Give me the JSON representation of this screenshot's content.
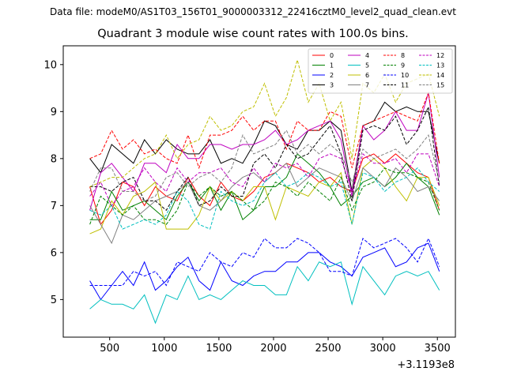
{
  "header": {
    "suptitle": "Data file: modeM0/AS1T03_156T01_9000003312_22416cztM0_level2_quad_clean.evt"
  },
  "chart_data": {
    "type": "line",
    "title": "Quadrant 3 module wise count rates with 100.0s bins.",
    "xlabel": "",
    "ylabel": "",
    "x_offset_label": "+3.1193e8",
    "xlim": [
      75,
      3665
    ],
    "ylim": [
      4.2,
      10.4
    ],
    "xticks": [
      500,
      1000,
      1500,
      2000,
      2500,
      3000,
      3500
    ],
    "yticks": [
      5,
      6,
      7,
      8,
      9,
      10
    ],
    "grid": false,
    "legend_position": "top-right",
    "x": [
      318,
      418,
      518,
      618,
      718,
      818,
      918,
      1018,
      1118,
      1218,
      1318,
      1418,
      1518,
      1618,
      1718,
      1818,
      1918,
      2018,
      2118,
      2218,
      2318,
      2418,
      2518,
      2618,
      2718,
      2818,
      2918,
      3018,
      3118,
      3218,
      3318,
      3418,
      3518
    ],
    "series": [
      {
        "name": "0",
        "color": "#ff0000",
        "dash": false,
        "values": [
          7.4,
          6.6,
          6.9,
          7.5,
          7.4,
          7.0,
          7.4,
          7.2,
          7.1,
          7.6,
          7.2,
          7.0,
          7.5,
          7.2,
          7.1,
          7.3,
          7.6,
          7.7,
          7.9,
          7.8,
          7.7,
          7.5,
          7.6,
          7.4,
          7.3,
          8.0,
          8.1,
          7.9,
          8.1,
          7.9,
          7.7,
          7.6,
          6.9
        ]
      },
      {
        "name": "1",
        "color": "#008000",
        "dash": false,
        "values": [
          6.7,
          6.7,
          7.3,
          6.9,
          7.0,
          7.1,
          6.9,
          6.7,
          7.2,
          7.5,
          7.1,
          7.4,
          6.9,
          7.3,
          6.7,
          6.9,
          7.4,
          7.4,
          7.6,
          8.1,
          7.9,
          7.7,
          7.4,
          7.0,
          7.2,
          7.5,
          7.6,
          7.4,
          7.6,
          7.9,
          7.6,
          7.4,
          6.8
        ]
      },
      {
        "name": "2",
        "color": "#0000ff",
        "dash": false,
        "values": [
          5.4,
          5.0,
          5.3,
          5.6,
          5.3,
          5.8,
          5.2,
          5.4,
          5.7,
          5.9,
          5.4,
          5.2,
          5.8,
          5.4,
          5.3,
          5.5,
          5.6,
          5.6,
          5.8,
          5.8,
          6.0,
          6.0,
          5.8,
          5.7,
          5.5,
          5.9,
          6.0,
          6.1,
          5.7,
          5.8,
          6.1,
          6.2,
          5.6
        ]
      },
      {
        "name": "3",
        "color": "#000000",
        "dash": false,
        "values": [
          8.0,
          7.7,
          8.3,
          8.1,
          7.9,
          8.4,
          8.1,
          8.4,
          8.2,
          8.1,
          8.1,
          8.4,
          7.9,
          8.0,
          7.9,
          8.3,
          8.8,
          8.7,
          8.3,
          8.2,
          8.6,
          8.6,
          8.8,
          8.6,
          7.3,
          8.7,
          8.8,
          9.2,
          9.0,
          9.1,
          9.0,
          9.0,
          7.9
        ]
      },
      {
        "name": "4",
        "color": "#bf00bf",
        "dash": false,
        "values": [
          6.9,
          7.7,
          7.9,
          7.6,
          7.3,
          7.9,
          7.9,
          7.7,
          8.3,
          8.0,
          8.0,
          8.3,
          8.3,
          8.2,
          8.3,
          8.3,
          8.4,
          8.6,
          8.3,
          8.4,
          8.6,
          8.7,
          8.8,
          8.4,
          7.2,
          8.7,
          8.4,
          8.6,
          9.0,
          8.6,
          8.6,
          9.4,
          7.6
        ]
      },
      {
        "name": "5",
        "color": "#00bfbf",
        "dash": false,
        "values": [
          4.8,
          5.0,
          4.9,
          4.9,
          4.8,
          5.1,
          4.5,
          5.1,
          5.0,
          5.5,
          5.0,
          5.1,
          5.0,
          5.2,
          5.4,
          5.3,
          5.3,
          5.1,
          5.1,
          5.7,
          5.4,
          5.8,
          5.7,
          5.8,
          4.9,
          5.7,
          5.4,
          5.1,
          5.5,
          5.6,
          5.5,
          5.6,
          5.2
        ]
      },
      {
        "name": "6",
        "color": "#bfbf00",
        "dash": false,
        "values": [
          6.4,
          6.5,
          7.1,
          6.8,
          7.2,
          7.3,
          7.5,
          6.5,
          6.5,
          6.5,
          6.8,
          7.4,
          7.1,
          7.3,
          7.1,
          7.4,
          7.4,
          6.7,
          7.4,
          7.3,
          7.2,
          7.5,
          7.4,
          7.7,
          6.6,
          7.8,
          8.0,
          7.8,
          7.4,
          7.1,
          7.6,
          7.6,
          7.0
        ]
      },
      {
        "name": "7",
        "color": "#808080",
        "dash": false,
        "values": [
          7.0,
          6.6,
          6.2,
          6.8,
          6.7,
          6.9,
          7.1,
          7.2,
          7.3,
          7.5,
          7.0,
          6.9,
          7.1,
          7.4,
          7.6,
          7.7,
          7.5,
          7.7,
          7.9,
          7.4,
          7.6,
          7.8,
          7.7,
          7.6,
          7.1,
          7.8,
          7.6,
          7.4,
          7.8,
          7.6,
          7.3,
          7.4,
          7.1
        ]
      },
      {
        "name": "8",
        "color": "#ff0000",
        "dash": true,
        "values": [
          8.0,
          8.1,
          8.6,
          8.2,
          8.4,
          8.1,
          8.2,
          8.0,
          7.9,
          8.5,
          7.8,
          8.5,
          8.5,
          8.6,
          8.9,
          8.6,
          8.8,
          8.8,
          8.2,
          8.8,
          8.6,
          8.6,
          9.0,
          8.9,
          7.8,
          8.7,
          8.8,
          8.9,
          9.0,
          8.9,
          8.8,
          9.4,
          7.9
        ]
      },
      {
        "name": "9",
        "color": "#008000",
        "dash": true,
        "values": [
          6.6,
          7.2,
          7.0,
          6.8,
          7.0,
          6.7,
          6.7,
          6.6,
          6.9,
          7.5,
          7.2,
          7.4,
          7.2,
          7.3,
          7.1,
          6.9,
          7.1,
          7.5,
          7.4,
          7.2,
          7.5,
          7.3,
          7.1,
          7.6,
          6.9,
          7.4,
          7.5,
          7.8,
          7.7,
          7.7,
          7.6,
          7.5,
          6.9
        ]
      },
      {
        "name": "10",
        "color": "#0000ff",
        "dash": true,
        "values": [
          5.3,
          5.3,
          5.3,
          5.3,
          5.6,
          5.5,
          5.6,
          5.3,
          5.8,
          5.7,
          5.6,
          6.0,
          5.8,
          5.7,
          6.0,
          5.9,
          6.3,
          6.1,
          6.1,
          6.3,
          6.2,
          6.0,
          5.6,
          5.6,
          5.5,
          6.3,
          6.1,
          6.2,
          6.3,
          6.1,
          5.8,
          6.3,
          5.7
        ]
      },
      {
        "name": "11",
        "color": "#000000",
        "dash": true,
        "values": [
          7.4,
          7.4,
          7.3,
          7.5,
          7.6,
          7.1,
          7.1,
          6.9,
          7.3,
          7.6,
          7.0,
          7.1,
          7.4,
          7.2,
          7.2,
          7.9,
          8.1,
          7.8,
          8.3,
          8.0,
          8.1,
          8.4,
          8.7,
          8.1,
          7.1,
          8.6,
          8.7,
          8.6,
          8.9,
          8.3,
          8.6,
          9.1,
          7.4
        ]
      },
      {
        "name": "12",
        "color": "#bf00bf",
        "dash": true,
        "values": [
          7.2,
          7.5,
          7.0,
          7.3,
          7.4,
          7.8,
          7.5,
          7.3,
          7.8,
          7.5,
          7.7,
          7.7,
          7.8,
          7.5,
          7.4,
          7.8,
          7.5,
          7.9,
          7.8,
          7.9,
          7.6,
          8.0,
          8.1,
          8.0,
          7.3,
          8.1,
          7.9,
          7.9,
          8.0,
          7.7,
          8.1,
          8.1,
          7.4
        ]
      },
      {
        "name": "13",
        "color": "#00bfbf",
        "dash": true,
        "values": [
          6.9,
          6.8,
          7.0,
          6.5,
          6.6,
          6.7,
          6.6,
          6.8,
          7.3,
          7.1,
          6.6,
          6.5,
          7.3,
          7.1,
          7.0,
          7.1,
          7.5,
          7.7,
          7.4,
          7.5,
          7.7,
          7.6,
          7.4,
          7.5,
          6.6,
          7.7,
          7.6,
          7.3,
          7.5,
          7.6,
          7.8,
          7.5,
          7.3
        ]
      },
      {
        "name": "14",
        "color": "#bfbf00",
        "dash": true,
        "values": [
          7.4,
          7.5,
          7.6,
          7.6,
          7.8,
          8.0,
          8.1,
          8.5,
          8.0,
          8.3,
          8.4,
          8.9,
          8.6,
          8.7,
          9.0,
          9.1,
          9.6,
          8.9,
          9.3,
          10.1,
          9.2,
          9.6,
          8.8,
          9.2,
          8.0,
          9.6,
          9.4,
          9.8,
          9.2,
          9.6,
          9.7,
          9.8,
          8.9
        ]
      },
      {
        "name": "15",
        "color": "#808080",
        "dash": true,
        "values": [
          7.3,
          7.8,
          7.8,
          7.3,
          7.3,
          7.1,
          7.2,
          7.6,
          7.7,
          7.4,
          7.6,
          7.7,
          7.5,
          7.8,
          8.5,
          8.1,
          8.2,
          8.3,
          8.6,
          8.1,
          8.3,
          8.1,
          8.3,
          8.1,
          7.5,
          8.2,
          8.0,
          8.1,
          8.2,
          8.0,
          8.2,
          8.5,
          7.5
        ]
      }
    ]
  }
}
